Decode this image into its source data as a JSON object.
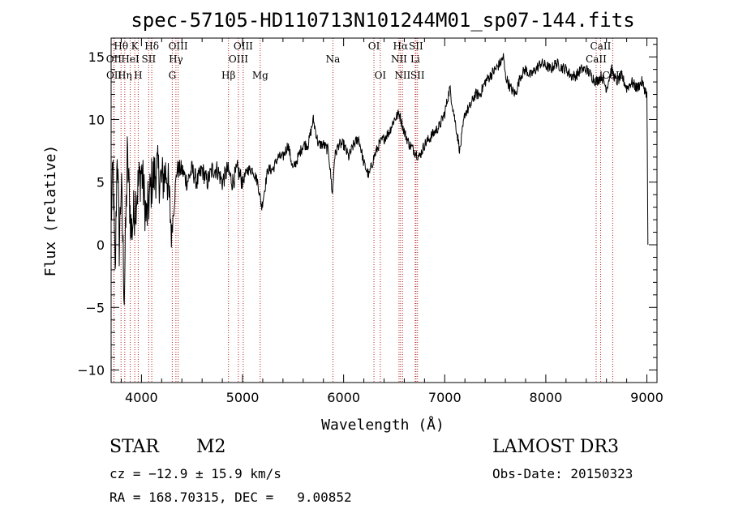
{
  "chart_data": {
    "type": "line",
    "title": "spec-57105-HD110713N101244M01_sp07-144.fits",
    "xlabel": "Wavelength (Å)",
    "ylabel": "Flux (relative)",
    "xlim": [
      3700,
      9100
    ],
    "ylim": [
      -11,
      16.5
    ],
    "xticks": [
      4000,
      5000,
      6000,
      7000,
      8000,
      9000
    ],
    "yticks": [
      -10,
      -5,
      0,
      5,
      10,
      15
    ],
    "line_color": "#000000",
    "marker_color": "#b22222",
    "series": [
      {
        "name": "spectrum",
        "x": [
          3700,
          3720,
          3740,
          3760,
          3780,
          3800,
          3830,
          3860,
          3900,
          3950,
          4000,
          4050,
          4100,
          4150,
          4200,
          4250,
          4300,
          4350,
          4400,
          4450,
          4500,
          4550,
          4600,
          4650,
          4700,
          4750,
          4800,
          4850,
          4900,
          4950,
          5000,
          5050,
          5100,
          5150,
          5190,
          5250,
          5300,
          5350,
          5400,
          5450,
          5500,
          5550,
          5600,
          5650,
          5700,
          5750,
          5800,
          5850,
          5890,
          5910,
          5950,
          6000,
          6050,
          6100,
          6150,
          6200,
          6250,
          6300,
          6350,
          6400,
          6450,
          6500,
          6550,
          6600,
          6650,
          6700,
          6750,
          6800,
          6850,
          6900,
          6950,
          7000,
          7050,
          7100,
          7150,
          7200,
          7250,
          7300,
          7350,
          7400,
          7450,
          7500,
          7550,
          7580,
          7600,
          7650,
          7700,
          7750,
          7800,
          7850,
          7900,
          7950,
          8000,
          8050,
          8100,
          8150,
          8200,
          8250,
          8300,
          8350,
          8400,
          8450,
          8500,
          8550,
          8600,
          8650,
          8700,
          8750,
          8800,
          8850,
          8900,
          8950,
          9000,
          9010
        ],
        "y": [
          2,
          6,
          -3,
          8,
          0,
          5,
          -4,
          7,
          1,
          4,
          6,
          2,
          5,
          6,
          5,
          6,
          1,
          6,
          6,
          5,
          6,
          5,
          6,
          5,
          6,
          6,
          5,
          6,
          5,
          6,
          5,
          6,
          6,
          5,
          3,
          6,
          6,
          7,
          7,
          8,
          6,
          7,
          8,
          8,
          10,
          8,
          8,
          7.5,
          4,
          7,
          8,
          8,
          7,
          8,
          8.5,
          6.5,
          5.5,
          7,
          8,
          8.5,
          9,
          10,
          10.5,
          9,
          8,
          7.5,
          7,
          8,
          8.5,
          9,
          9.5,
          10.5,
          12.5,
          10,
          7.5,
          10.5,
          11,
          12,
          12,
          13,
          13.5,
          14,
          14.5,
          15,
          13.5,
          12.5,
          12,
          13.5,
          14,
          13.5,
          14,
          14.5,
          14.3,
          14,
          14.5,
          14.2,
          14,
          13.5,
          13.5,
          14,
          14,
          13.5,
          13,
          13.5,
          12.5,
          14,
          13,
          13.5,
          12.5,
          13,
          12.5,
          13,
          12,
          0
        ]
      }
    ],
    "lines": [
      {
        "label": "OII",
        "wavelength": 3727,
        "row": 1
      },
      {
        "label": "OII",
        "wavelength": 3729,
        "row": 3
      },
      {
        "label": "Hθ",
        "wavelength": 3798,
        "row": 0
      },
      {
        "label": "Hη",
        "wavelength": 3835,
        "row": 3
      },
      {
        "label": "HeI",
        "wavelength": 3889,
        "row": 1
      },
      {
        "label": "K",
        "wavelength": 3934,
        "row": 0
      },
      {
        "label": "H",
        "wavelength": 3968,
        "row": 3
      },
      {
        "label": "SII",
        "wavelength": 4072,
        "row": 1
      },
      {
        "label": "Hδ",
        "wavelength": 4102,
        "row": 0
      },
      {
        "label": "G",
        "wavelength": 4305,
        "row": 3
      },
      {
        "label": "Hγ",
        "wavelength": 4341,
        "row": 2
      },
      {
        "label": "OIII",
        "wavelength": 4363,
        "row": 0
      },
      {
        "label": "Hβ",
        "wavelength": 4861,
        "row": 3
      },
      {
        "label": "OIII",
        "wavelength": 4959,
        "row": 1
      },
      {
        "label": "OIII",
        "wavelength": 5007,
        "row": 0
      },
      {
        "label": "Mg",
        "wavelength": 5175,
        "row": 3
      },
      {
        "label": "Na",
        "wavelength": 5894,
        "row": 1
      },
      {
        "label": "OI",
        "wavelength": 6300,
        "row": 0
      },
      {
        "label": "OI",
        "wavelength": 6363,
        "row": 3
      },
      {
        "label": "NII",
        "wavelength": 6548,
        "row": 1
      },
      {
        "label": "Hα",
        "wavelength": 6563,
        "row": 0
      },
      {
        "label": "NII",
        "wavelength": 6583,
        "row": 3
      },
      {
        "label": "Li",
        "wavelength": 6708,
        "row": 1
      },
      {
        "label": "SII",
        "wavelength": 6716,
        "row": 0
      },
      {
        "label": "SII",
        "wavelength": 6731,
        "row": 3
      },
      {
        "label": "CaII",
        "wavelength": 8498,
        "row": 1
      },
      {
        "label": "CaII",
        "wavelength": 8542,
        "row": 0
      },
      {
        "label": "CaII",
        "wavelength": 8662,
        "row": 3
      }
    ]
  },
  "info": {
    "object_class": "STAR",
    "subclass": "M2",
    "redshift": "cz = −12.9 ± 15.9 km/s",
    "coords": "RA = 168.70315, DEC =   9.00852",
    "survey": "LAMOST DR3",
    "obs_date": "Obs-Date: 20150323"
  }
}
